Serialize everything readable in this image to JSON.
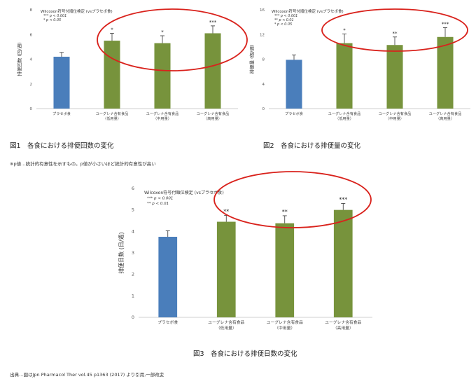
{
  "captions": {
    "fig1": "図1　各食における排便回数の変化",
    "fig2": "図2　各食における排便量の変化",
    "fig3": "図3　各食における排便日数の変化",
    "note": "※p値…統計的有意性を示すもの。p値が小さいほど統計的有意性が高い",
    "source": "出典…図はJpn Pharmacol Ther vol.45 p1363 (2017) より引用,一部改変"
  },
  "chart_data": [
    {
      "type": "bar",
      "ylabel": "排便回数 (回/週)",
      "ylim": [
        0,
        8
      ],
      "yticks": [
        0,
        2,
        4,
        6,
        8
      ],
      "categories": [
        [
          "プラセボ食"
        ],
        [
          "ユーグレナ含有食品",
          "（低用量）"
        ],
        [
          "ユーグレナ含有食品",
          "（中用量）"
        ],
        [
          "ユーグレナ含有食品",
          "（高用量）"
        ]
      ],
      "values": [
        4.2,
        5.5,
        5.3,
        6.1
      ],
      "errors": [
        0.35,
        0.6,
        0.6,
        0.6
      ],
      "significance": [
        "",
        "*",
        "*",
        "***"
      ],
      "colors": [
        "#4a7ebb",
        "#77933c",
        "#77933c",
        "#77933c"
      ],
      "legend": [
        "Wilcoxon符号付順位検定 (vsプラセボ食)",
        "*** p < 0.001",
        "* p < 0.05"
      ],
      "highlight": "red-ellipse"
    },
    {
      "type": "bar",
      "ylabel": "排便量 (個/週)",
      "ylim": [
        0,
        16
      ],
      "yticks": [
        0,
        4,
        8,
        12,
        16
      ],
      "categories": [
        [
          "プラセボ食"
        ],
        [
          "ユーグレナ含有食品",
          "（低用量）"
        ],
        [
          "ユーグレナ含有食品",
          "（中用量）"
        ],
        [
          "ユーグレナ含有食品",
          "（高用量）"
        ]
      ],
      "values": [
        7.9,
        10.6,
        10.3,
        11.6
      ],
      "errors": [
        0.8,
        1.5,
        1.3,
        1.5
      ],
      "significance": [
        "",
        "*",
        "**",
        "***"
      ],
      "colors": [
        "#4a7ebb",
        "#77933c",
        "#77933c",
        "#77933c"
      ],
      "legend": [
        "Wilcoxon符号付順位検定 (vsプラセボ食)",
        "*** p < 0.001",
        "** p < 0.01",
        "* p < 0.05"
      ],
      "highlight": "red-ellipse"
    },
    {
      "type": "bar",
      "ylabel": "排便日数 (日/週)",
      "ylim": [
        0,
        6
      ],
      "yticks": [
        0,
        1,
        2,
        3,
        4,
        5,
        6
      ],
      "categories": [
        [
          "プラセボ食"
        ],
        [
          "ユーグレナ含有食品",
          "（低用量）"
        ],
        [
          "ユーグレナ含有食品",
          "（中用量）"
        ],
        [
          "ユーグレナ含有食品",
          "（高用量）"
        ]
      ],
      "values": [
        3.75,
        4.45,
        4.38,
        5.0
      ],
      "errors": [
        0.28,
        0.3,
        0.35,
        0.3
      ],
      "significance": [
        "",
        "**",
        "**",
        "***"
      ],
      "colors": [
        "#4a7ebb",
        "#77933c",
        "#77933c",
        "#77933c"
      ],
      "legend": [
        "Wilcoxon符号付順位検定 (vsプラセボ食)",
        "*** p < 0.001",
        "** p < 0.01"
      ],
      "highlight": "red-ellipse"
    }
  ]
}
